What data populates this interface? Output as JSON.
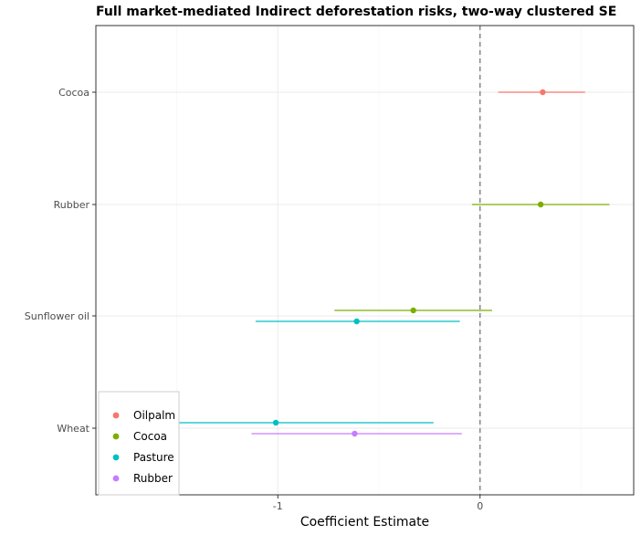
{
  "chart_data": {
    "type": "forest",
    "title": "Full market-mediated Indirect deforestation risks, two-way clustered SE",
    "xlabel": "Coefficient Estimate",
    "ylabel": "",
    "xlim": [
      -1.9,
      0.76
    ],
    "xticks": [
      -1,
      0
    ],
    "xtick_labels": [
      "-1",
      "0"
    ],
    "reference_line": 0,
    "grid": true,
    "legend_position": "bottom-left",
    "categories": [
      "Cocoa",
      "Rubber",
      "Sunflower oil",
      "Wheat"
    ],
    "series": [
      {
        "name": "Oilpalm",
        "color": "#F8766D",
        "points": [
          {
            "category": "Cocoa",
            "estimate": 0.31,
            "low": 0.09,
            "high": 0.52
          }
        ]
      },
      {
        "name": "Cocoa",
        "color": "#7CAE00",
        "points": [
          {
            "category": "Rubber",
            "estimate": 0.3,
            "low": -0.04,
            "high": 0.64
          },
          {
            "category": "Sunflower oil",
            "estimate": -0.33,
            "low": -0.72,
            "high": 0.06
          }
        ]
      },
      {
        "name": "Pasture",
        "color": "#00BFC4",
        "points": [
          {
            "category": "Sunflower oil",
            "estimate": -0.61,
            "low": -1.11,
            "high": -0.1
          },
          {
            "category": "Wheat",
            "estimate": -1.01,
            "low": -1.5,
            "high": -0.23
          }
        ]
      },
      {
        "name": "Rubber",
        "color": "#C77CFF",
        "points": [
          {
            "category": "Wheat",
            "estimate": -0.62,
            "low": -1.13,
            "high": -0.09
          }
        ]
      }
    ]
  }
}
